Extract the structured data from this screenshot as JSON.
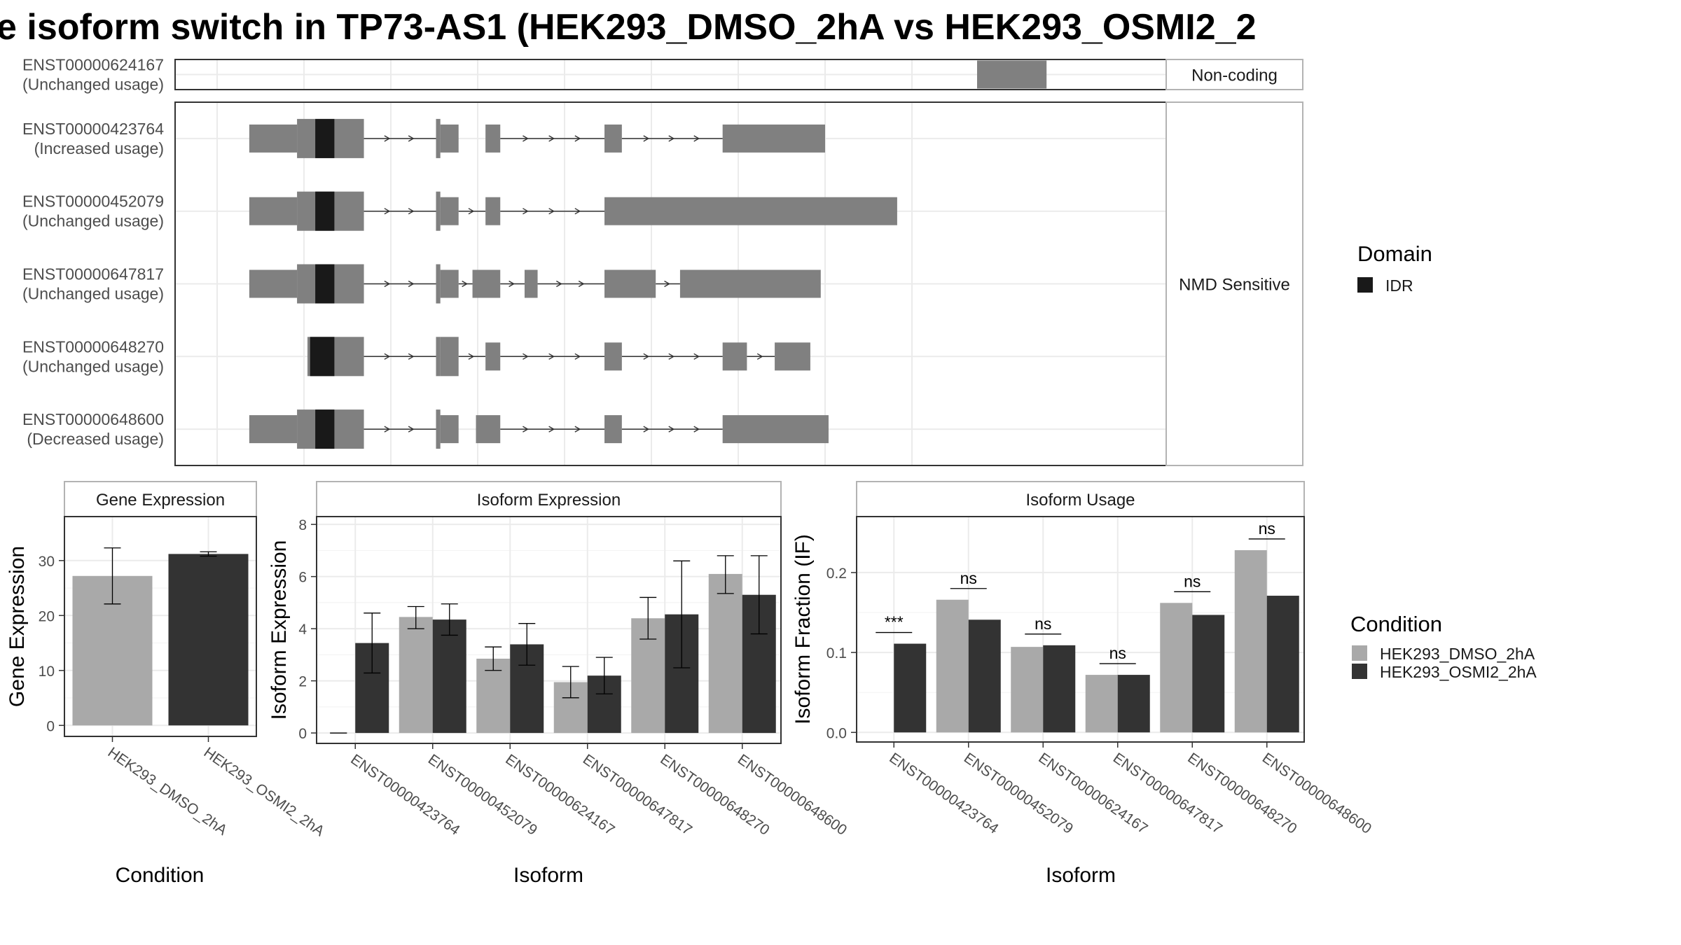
{
  "title": "e isoform switch in TP73-AS1 (HEK293_DMSO_2hA vs HEK293_OSMI2_2",
  "colors": {
    "exon": "#808080",
    "domain": "#191919",
    "grid": "#ebebeb",
    "panel_border": "#333333",
    "strip_border": "#b3b3b3",
    "dmso": "#a9a9a9",
    "osmi2": "#333333"
  },
  "chart_data": [
    {
      "type": "gene-structure",
      "title": "e isoform switch in TP73-AS1 (HEK293_DMSO_2hA vs HEK293_OSMI2_2",
      "xlim": [
        0,
        100
      ],
      "facets": [
        {
          "label": "Non-coding",
          "transcripts": [
            {
              "id": "ENST00000624167",
              "usage": "(Unchanged usage)",
              "exons": [
                [
                  87.5,
                  95.5
                ]
              ],
              "domains": [],
              "introns": []
            }
          ]
        },
        {
          "label": "NMD Sensitive",
          "transcripts": [
            {
              "id": "ENST00000423764",
              "usage": "(Increased usage)",
              "exons": [
                [
                  3.7,
                  9.2
                ],
                [
                  9.2,
                  16.9
                ],
                [
                  25.2,
                  25.7
                ],
                [
                  25.7,
                  27.8
                ],
                [
                  30.9,
                  32.6
                ],
                [
                  44.6,
                  46.6
                ],
                [
                  58.2,
                  70.0
                ]
              ],
              "domains": [
                [
                  11.3,
                  13.5
                ]
              ],
              "introns": [
                [
                  16.9,
                  25.2
                ],
                [
                  32.6,
                  44.6
                ],
                [
                  46.6,
                  58.2
                ]
              ]
            },
            {
              "id": "ENST00000452079",
              "usage": "(Unchanged usage)",
              "exons": [
                [
                  3.7,
                  9.2
                ],
                [
                  9.2,
                  16.9
                ],
                [
                  25.2,
                  25.7
                ],
                [
                  25.7,
                  27.8
                ],
                [
                  30.9,
                  32.6
                ],
                [
                  44.6,
                  78.3
                ]
              ],
              "domains": [
                [
                  11.3,
                  13.5
                ]
              ],
              "introns": [
                [
                  16.9,
                  25.2
                ],
                [
                  27.8,
                  30.9
                ],
                [
                  32.6,
                  44.6
                ]
              ]
            },
            {
              "id": "ENST00000647817",
              "usage": "(Unchanged usage)",
              "exons": [
                [
                  3.7,
                  9.2
                ],
                [
                  9.2,
                  16.9
                ],
                [
                  25.2,
                  25.7
                ],
                [
                  25.7,
                  27.8
                ],
                [
                  29.4,
                  32.6
                ],
                [
                  35.4,
                  36.9
                ],
                [
                  44.6,
                  50.5
                ],
                [
                  53.3,
                  69.5
                ]
              ],
              "domains": [
                [
                  11.3,
                  13.5
                ]
              ],
              "introns": [
                [
                  16.9,
                  25.2
                ],
                [
                  27.8,
                  29.4
                ],
                [
                  32.6,
                  35.4
                ],
                [
                  36.9,
                  44.6
                ],
                [
                  50.5,
                  53.3
                ]
              ]
            },
            {
              "id": "ENST00000648270",
              "usage": "(Unchanged usage)",
              "exons": [
                [
                  10.4,
                  16.9
                ],
                [
                  25.2,
                  25.7
                ],
                [
                  25.7,
                  27.8
                ],
                [
                  30.9,
                  32.6
                ],
                [
                  44.6,
                  46.6
                ],
                [
                  58.2,
                  61.0
                ],
                [
                  64.2,
                  68.3
                ]
              ],
              "domains": [
                [
                  10.7,
                  13.5
                ]
              ],
              "introns": [
                [
                  16.9,
                  25.2
                ],
                [
                  27.8,
                  30.9
                ],
                [
                  32.6,
                  44.6
                ],
                [
                  46.6,
                  58.2
                ],
                [
                  61.0,
                  64.2
                ]
              ]
            },
            {
              "id": "ENST00000648600",
              "usage": "(Decreased usage)",
              "exons": [
                [
                  3.7,
                  9.2
                ],
                [
                  9.2,
                  16.9
                ],
                [
                  25.2,
                  25.7
                ],
                [
                  25.7,
                  27.8
                ],
                [
                  29.8,
                  32.6
                ],
                [
                  44.6,
                  46.6
                ],
                [
                  58.2,
                  70.4
                ]
              ],
              "domains": [
                [
                  11.3,
                  13.5
                ]
              ],
              "introns": [
                [
                  16.9,
                  25.2
                ],
                [
                  32.6,
                  44.6
                ],
                [
                  46.6,
                  58.2
                ]
              ]
            }
          ]
        }
      ],
      "legend": {
        "title": "Domain",
        "entries": [
          "IDR"
        ]
      }
    },
    {
      "type": "bar",
      "title": "Gene Expression",
      "xlabel": "Condition",
      "ylabel": "Gene Expression",
      "ylim": [
        -2,
        38
      ],
      "yticks": [
        0,
        10,
        20,
        30
      ],
      "categories": [
        "HEK293_DMSO_2hA",
        "HEK293_OSMI2_2hA"
      ],
      "values": [
        27.2,
        31.2
      ],
      "errors": [
        [
          22.1,
          32.3
        ],
        [
          30.8,
          31.6
        ]
      ]
    },
    {
      "type": "bar",
      "title": "Isoform Expression",
      "xlabel": "Isoform",
      "ylabel": "Isoform Expression",
      "ylim": [
        -0.4,
        8.3
      ],
      "yticks": [
        0,
        2,
        4,
        6,
        8
      ],
      "categories": [
        "ENST00000423764",
        "ENST00000452079",
        "ENST00000624167",
        "ENST00000647817",
        "ENST00000648270",
        "ENST00000648600"
      ],
      "series": [
        {
          "name": "HEK293_DMSO_2hA",
          "values": [
            0.0,
            4.45,
            2.85,
            1.95,
            4.4,
            6.1
          ],
          "errors": [
            [
              0.0,
              0.0
            ],
            [
              4.0,
              4.85
            ],
            [
              2.4,
              3.3
            ],
            [
              1.35,
              2.55
            ],
            [
              3.6,
              5.2
            ],
            [
              5.35,
              6.8
            ]
          ]
        },
        {
          "name": "HEK293_OSMI2_2hA",
          "values": [
            3.45,
            4.35,
            3.4,
            2.2,
            4.55,
            5.3
          ],
          "errors": [
            [
              2.3,
              4.6
            ],
            [
              3.75,
              4.95
            ],
            [
              2.6,
              4.2
            ],
            [
              1.5,
              2.9
            ],
            [
              2.5,
              6.6
            ],
            [
              3.8,
              6.8
            ]
          ]
        }
      ]
    },
    {
      "type": "bar",
      "title": "Isoform Usage",
      "xlabel": "Isoform",
      "ylabel": "Isoform Fraction (IF)",
      "ylim": [
        -0.012,
        0.27
      ],
      "yticks": [
        "0.0",
        "0.1",
        "0.2"
      ],
      "categories": [
        "ENST00000423764",
        "ENST00000452079",
        "ENST00000624167",
        "ENST00000647817",
        "ENST00000648270",
        "ENST00000648600"
      ],
      "series": [
        {
          "name": "HEK293_DMSO_2hA",
          "values": [
            0.0,
            0.166,
            0.107,
            0.072,
            0.162,
            0.228
          ]
        },
        {
          "name": "HEK293_OSMI2_2hA",
          "values": [
            0.111,
            0.141,
            0.109,
            0.072,
            0.147,
            0.171
          ]
        }
      ],
      "significance": [
        "***",
        "ns",
        "ns",
        "ns",
        "ns",
        "ns"
      ],
      "legend": {
        "title": "Condition",
        "entries": [
          "HEK293_DMSO_2hA",
          "HEK293_OSMI2_2hA"
        ]
      }
    }
  ]
}
